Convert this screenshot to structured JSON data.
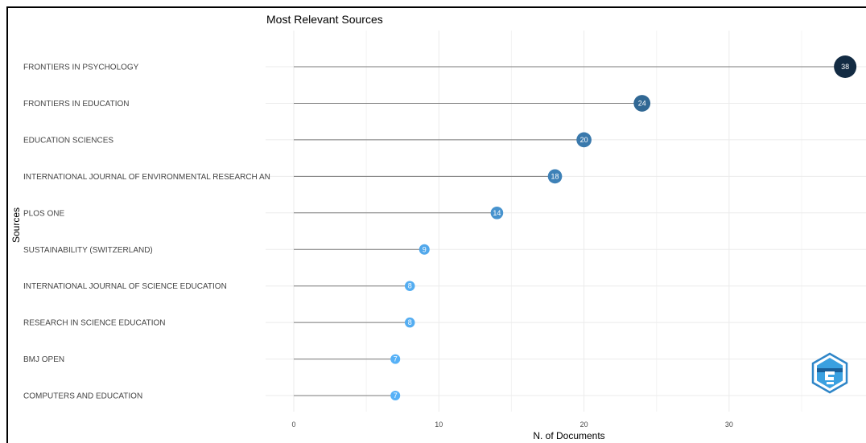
{
  "chart_data": {
    "type": "lollipop",
    "title": "Most Relevant Sources",
    "xlabel": "N. of Documents",
    "ylabel": "Sources",
    "xlim": [
      0,
      39.5
    ],
    "xticks": [
      0,
      10,
      20,
      30
    ],
    "grid": true,
    "categories": [
      "FRONTIERS IN PSYCHOLOGY",
      "FRONTIERS IN EDUCATION",
      "EDUCATION SCIENCES",
      "INTERNATIONAL JOURNAL OF ENVIRONMENTAL RESEARCH AN",
      "PLOS ONE",
      "SUSTAINABILITY (SWITZERLAND)",
      "INTERNATIONAL JOURNAL OF SCIENCE EDUCATION",
      "RESEARCH IN SCIENCE EDUCATION",
      "BMJ OPEN",
      "COMPUTERS AND EDUCATION"
    ],
    "values": [
      38,
      24,
      20,
      18,
      14,
      9,
      8,
      8,
      7,
      7
    ],
    "color_low": "#56B1F7",
    "color_high": "#132B43"
  },
  "logo": {
    "icon": "bibliometrix-logo-icon"
  }
}
